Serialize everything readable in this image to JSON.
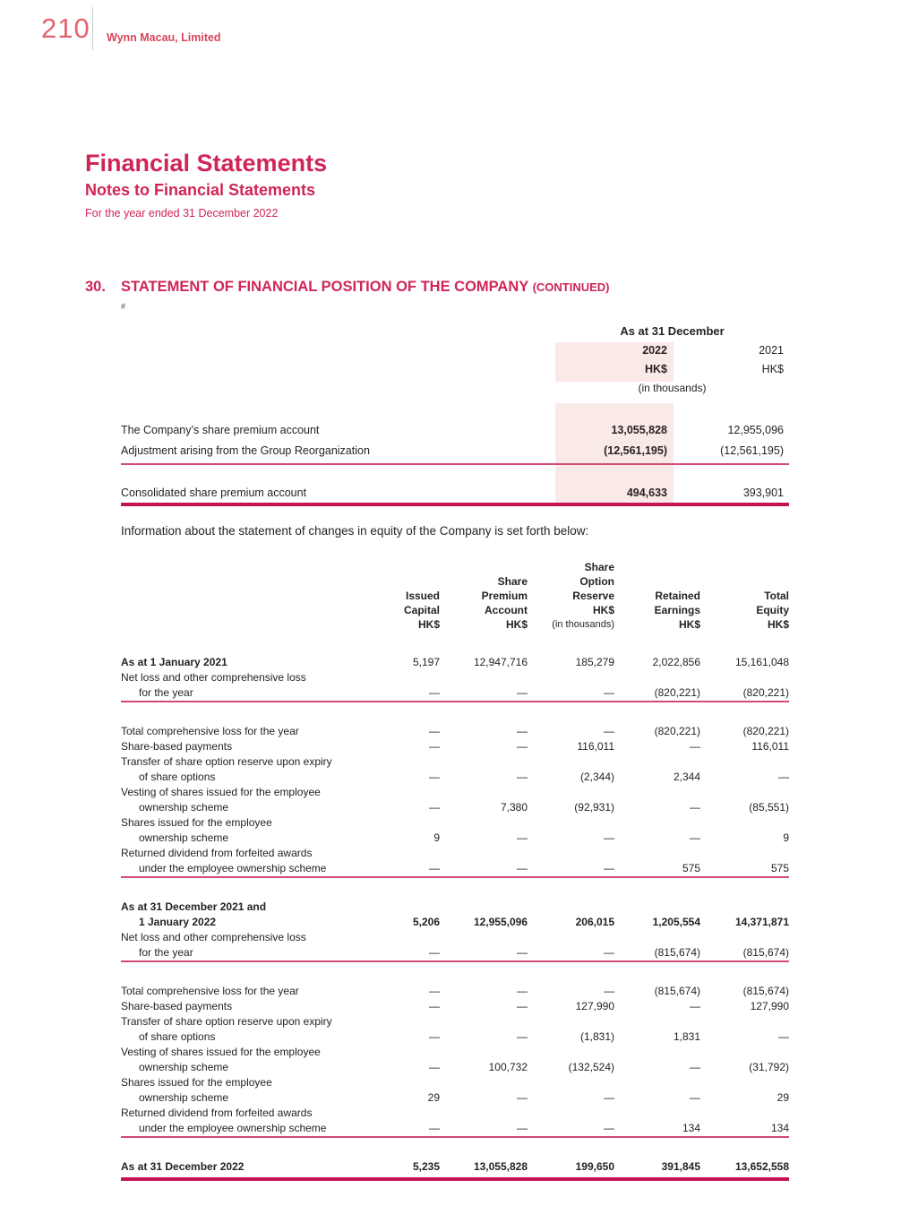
{
  "page": {
    "number": "210",
    "company": "Wynn Macau, Limited"
  },
  "header": {
    "title": "Financial Statements",
    "subtitle": "Notes to Financial Statements",
    "period": "For the year ended 31 December 2022"
  },
  "section": {
    "number": "30.",
    "title": "STATEMENT OF FINANCIAL POSITION OF THE COMPANY ",
    "continued": "(CONTINUED)",
    "footnote_marker": "#"
  },
  "colors": {
    "accent_crimson": "#d02556",
    "page_number_red": "#e4636e",
    "highlight_pink": "#f9eae7",
    "rule_thin": "#d14b74",
    "rule_thick": "#c31556",
    "body_text": "#262223"
  },
  "premium_table": {
    "header_group": "As at 31 December",
    "year_current": "2022",
    "year_prior": "2021",
    "unit_current": "HK$",
    "unit_prior": "HK$",
    "unit_note": "(in thousands)",
    "rows": [
      {
        "label": "The Company’s share premium account",
        "v2022": "13,055,828",
        "v2021": "12,955,096"
      },
      {
        "label": "Adjustment arising from the Group Reorganization",
        "v2022": "(12,561,195)",
        "v2021": "(12,561,195)"
      }
    ],
    "total_row": {
      "label": "Consolidated share premium account",
      "v2022": "494,633",
      "v2021": "393,901"
    }
  },
  "intro_text": "Information about the statement of changes in equity of the Company is set forth below:",
  "equity_table": {
    "columns": [
      {
        "lines": [
          "Issued",
          "Capital",
          "HK$"
        ]
      },
      {
        "lines": [
          "Share",
          "Premium",
          "Account",
          "HK$"
        ]
      },
      {
        "lines": [
          "Share",
          "Option",
          "Reserve",
          "HK$"
        ],
        "note": "(in thousands)"
      },
      {
        "lines": [
          "Retained",
          "Earnings",
          "HK$"
        ]
      },
      {
        "lines": [
          "Total",
          "Equity",
          "HK$"
        ]
      }
    ],
    "rows": [
      {
        "l1": "As at 1 January 2021",
        "v": [
          "5,197",
          "12,947,716",
          "185,279",
          "2,022,856",
          "15,161,048"
        ]
      },
      {
        "l1": "Net loss and other comprehensive loss",
        "l2": "for the year",
        "v": [
          "—",
          "—",
          "—",
          "(820,221)",
          "(820,221)"
        ]
      },
      {
        "l1": "Total comprehensive loss for the year",
        "v": [
          "—",
          "—",
          "—",
          "(820,221)",
          "(820,221)"
        ]
      },
      {
        "l1": "Share-based payments",
        "v": [
          "—",
          "—",
          "116,011",
          "—",
          "116,011"
        ]
      },
      {
        "l1": "Transfer of share option reserve upon expiry",
        "l2": "of share options",
        "v": [
          "—",
          "—",
          "(2,344)",
          "2,344",
          "—"
        ]
      },
      {
        "l1": "Vesting of shares issued for the employee",
        "l2": "ownership scheme",
        "v": [
          "—",
          "7,380",
          "(92,931)",
          "—",
          "(85,551)"
        ]
      },
      {
        "l1": "Shares issued for the employee",
        "l2": "ownership scheme",
        "v": [
          "9",
          "—",
          "—",
          "—",
          "9"
        ]
      },
      {
        "l1": "Returned dividend from forfeited awards",
        "l2": "under the employee ownership scheme",
        "v": [
          "—",
          "—",
          "—",
          "575",
          "575"
        ]
      },
      {
        "l1": "As at 31 December 2021 and",
        "l2": "1 January 2022",
        "v": [
          "5,206",
          "12,955,096",
          "206,015",
          "1,205,554",
          "14,371,871"
        ]
      },
      {
        "l1": "Net loss and other comprehensive loss",
        "l2": "for the year",
        "v": [
          "—",
          "—",
          "—",
          "(815,674)",
          "(815,674)"
        ]
      },
      {
        "l1": "Total comprehensive loss for the year",
        "v": [
          "—",
          "—",
          "—",
          "(815,674)",
          "(815,674)"
        ]
      },
      {
        "l1": "Share-based payments",
        "v": [
          "—",
          "—",
          "127,990",
          "—",
          "127,990"
        ]
      },
      {
        "l1": "Transfer of share option reserve upon expiry",
        "l2": "of share options",
        "v": [
          "—",
          "—",
          "(1,831)",
          "1,831",
          "—"
        ]
      },
      {
        "l1": "Vesting of shares issued for the employee",
        "l2": "ownership scheme",
        "v": [
          "—",
          "100,732",
          "(132,524)",
          "—",
          "(31,792)"
        ]
      },
      {
        "l1": "Shares issued for the employee",
        "l2": "ownership scheme",
        "v": [
          "29",
          "—",
          "—",
          "—",
          "29"
        ]
      },
      {
        "l1": "Returned dividend from forfeited awards",
        "l2": "under the employee ownership scheme",
        "v": [
          "—",
          "—",
          "—",
          "134",
          "134"
        ]
      },
      {
        "l1": "As at 31 December 2022",
        "v": [
          "5,235",
          "13,055,828",
          "199,650",
          "391,845",
          "13,652,558"
        ]
      }
    ]
  }
}
